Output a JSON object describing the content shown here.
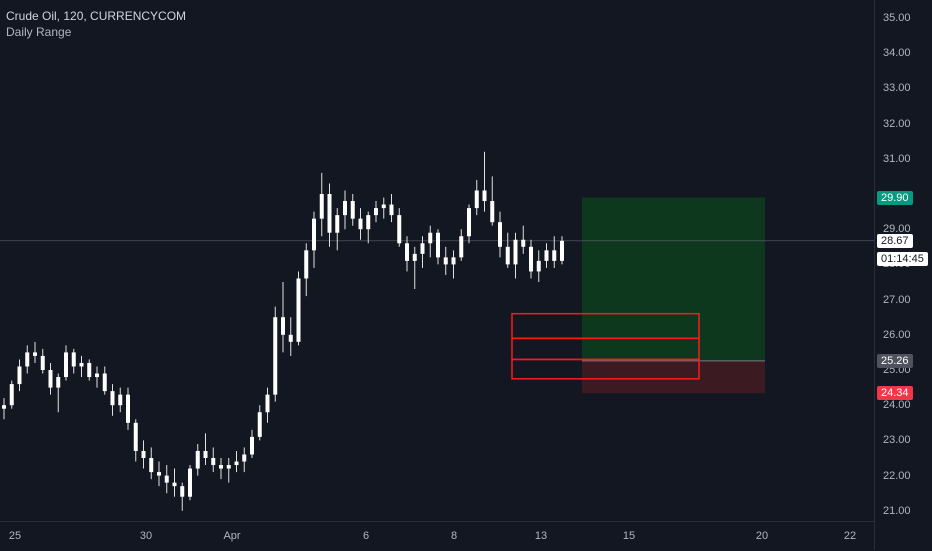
{
  "legend": {
    "title": "Crude Oil, 120, CURRENCYCOM",
    "indicator": "Daily Range"
  },
  "price_axis": {
    "ticks": [
      "35.00",
      "34.00",
      "33.00",
      "32.00",
      "31.00",
      "29.00",
      "28.00",
      "27.00",
      "26.00",
      "25.00",
      "24.00",
      "23.00",
      "22.00",
      "21.00"
    ],
    "tick_values": [
      35,
      34,
      33,
      32,
      31,
      29,
      28,
      27,
      26,
      25,
      24,
      23,
      22,
      21
    ]
  },
  "price_tags": {
    "target": {
      "label": "29.90",
      "value": 29.9,
      "color": "#089981"
    },
    "last": {
      "label": "28.67",
      "value": 28.67,
      "color": "#131722"
    },
    "countdown": {
      "label": "01:14:45"
    },
    "entry": {
      "label": "25.26",
      "value": 25.26,
      "color": "#50535e"
    },
    "stop": {
      "label": "24.34",
      "value": 24.34,
      "color": "#f23645"
    }
  },
  "time_axis": {
    "ticks": [
      "25",
      "30",
      "Apr",
      "6",
      "8",
      "13",
      "15",
      "20",
      "22"
    ]
  },
  "colors": {
    "background": "#131722",
    "candle_up": "#ffffff",
    "candle_down": "#ffffff",
    "profit_zone": "#0e3a1f",
    "loss_zone": "#3d1a22",
    "range_box": "#ff1a1a"
  },
  "chart_data": {
    "type": "candlestick",
    "title": "Crude Oil, 120, CURRENCYCOM",
    "ylim": [
      20.8,
      35.5
    ],
    "long_position": {
      "entry": 25.26,
      "target": 29.9,
      "stop": 24.34
    },
    "range_boxes": [
      [
        25.9,
        26.6
      ],
      [
        25.3,
        25.9
      ],
      [
        24.75,
        25.3
      ]
    ],
    "candles": [
      [
        23.9,
        24.2,
        23.6,
        24.0
      ],
      [
        24.0,
        24.7,
        23.9,
        24.6
      ],
      [
        24.6,
        25.3,
        24.4,
        25.1
      ],
      [
        25.1,
        25.7,
        24.9,
        25.5
      ],
      [
        25.5,
        25.8,
        25.2,
        25.4
      ],
      [
        25.4,
        25.6,
        24.9,
        25.0
      ],
      [
        25.0,
        25.2,
        24.3,
        24.5
      ],
      [
        24.5,
        24.9,
        23.8,
        24.8
      ],
      [
        24.8,
        25.7,
        24.7,
        25.5
      ],
      [
        25.5,
        25.6,
        24.9,
        25.1
      ],
      [
        25.1,
        25.4,
        24.8,
        25.2
      ],
      [
        25.2,
        25.3,
        24.7,
        24.8
      ],
      [
        24.8,
        25.1,
        24.5,
        24.9
      ],
      [
        24.9,
        25.1,
        24.3,
        24.4
      ],
      [
        24.4,
        24.6,
        23.7,
        24.0
      ],
      [
        24.0,
        24.5,
        23.8,
        24.3
      ],
      [
        24.3,
        24.5,
        23.3,
        23.5
      ],
      [
        23.5,
        23.6,
        22.4,
        22.7
      ],
      [
        22.7,
        23.0,
        22.2,
        22.5
      ],
      [
        22.5,
        22.8,
        21.9,
        22.1
      ],
      [
        22.1,
        22.4,
        21.7,
        22.0
      ],
      [
        22.0,
        22.3,
        21.5,
        21.8
      ],
      [
        21.8,
        22.2,
        21.4,
        21.7
      ],
      [
        21.7,
        21.8,
        21.0,
        21.4
      ],
      [
        21.4,
        22.3,
        21.3,
        22.2
      ],
      [
        22.2,
        22.9,
        22.0,
        22.7
      ],
      [
        22.7,
        23.2,
        22.3,
        22.5
      ],
      [
        22.5,
        22.8,
        22.1,
        22.3
      ],
      [
        22.3,
        22.5,
        21.9,
        22.2
      ],
      [
        22.2,
        22.5,
        21.8,
        22.3
      ],
      [
        22.3,
        22.7,
        22.1,
        22.4
      ],
      [
        22.4,
        22.8,
        22.1,
        22.6
      ],
      [
        22.6,
        23.3,
        22.5,
        23.1
      ],
      [
        23.1,
        24.0,
        23.0,
        23.8
      ],
      [
        23.8,
        24.5,
        23.5,
        24.3
      ],
      [
        24.3,
        26.8,
        24.1,
        26.5
      ],
      [
        26.5,
        27.5,
        25.5,
        26.0
      ],
      [
        26.0,
        26.5,
        25.4,
        25.8
      ],
      [
        25.8,
        27.8,
        25.7,
        27.6
      ],
      [
        27.6,
        28.6,
        27.1,
        28.4
      ],
      [
        28.4,
        29.5,
        27.9,
        29.3
      ],
      [
        29.3,
        30.6,
        28.8,
        30.0
      ],
      [
        30.0,
        30.3,
        28.5,
        28.9
      ],
      [
        28.9,
        29.6,
        28.4,
        29.4
      ],
      [
        29.4,
        30.1,
        29.0,
        29.8
      ],
      [
        29.8,
        30.0,
        29.1,
        29.3
      ],
      [
        29.3,
        29.6,
        28.7,
        29.0
      ],
      [
        29.0,
        29.5,
        28.6,
        29.4
      ],
      [
        29.4,
        29.8,
        29.2,
        29.6
      ],
      [
        29.6,
        29.9,
        29.3,
        29.7
      ],
      [
        29.7,
        30.0,
        29.2,
        29.4
      ],
      [
        29.4,
        29.6,
        28.5,
        28.6
      ],
      [
        28.6,
        28.8,
        27.8,
        28.1
      ],
      [
        28.1,
        28.5,
        27.3,
        28.3
      ],
      [
        28.3,
        28.8,
        27.9,
        28.6
      ],
      [
        28.6,
        29.1,
        28.2,
        28.9
      ],
      [
        28.9,
        29.0,
        28.0,
        28.2
      ],
      [
        28.2,
        28.5,
        27.7,
        28.0
      ],
      [
        28.0,
        28.4,
        27.6,
        28.2
      ],
      [
        28.2,
        29.0,
        28.1,
        28.8
      ],
      [
        28.8,
        29.7,
        28.6,
        29.6
      ],
      [
        29.6,
        30.4,
        29.4,
        30.1
      ],
      [
        30.1,
        31.2,
        29.5,
        29.8
      ],
      [
        29.8,
        30.5,
        29.1,
        29.2
      ],
      [
        29.2,
        29.5,
        28.2,
        28.5
      ],
      [
        28.5,
        28.9,
        27.9,
        28.0
      ],
      [
        28.0,
        28.9,
        27.6,
        28.7
      ],
      [
        28.7,
        29.1,
        28.3,
        28.5
      ],
      [
        28.5,
        28.7,
        27.6,
        27.8
      ],
      [
        27.8,
        28.4,
        27.5,
        28.1
      ],
      [
        28.1,
        28.6,
        27.9,
        28.4
      ],
      [
        28.4,
        28.8,
        27.9,
        28.1
      ],
      [
        28.1,
        28.8,
        28.0,
        28.67
      ]
    ]
  }
}
